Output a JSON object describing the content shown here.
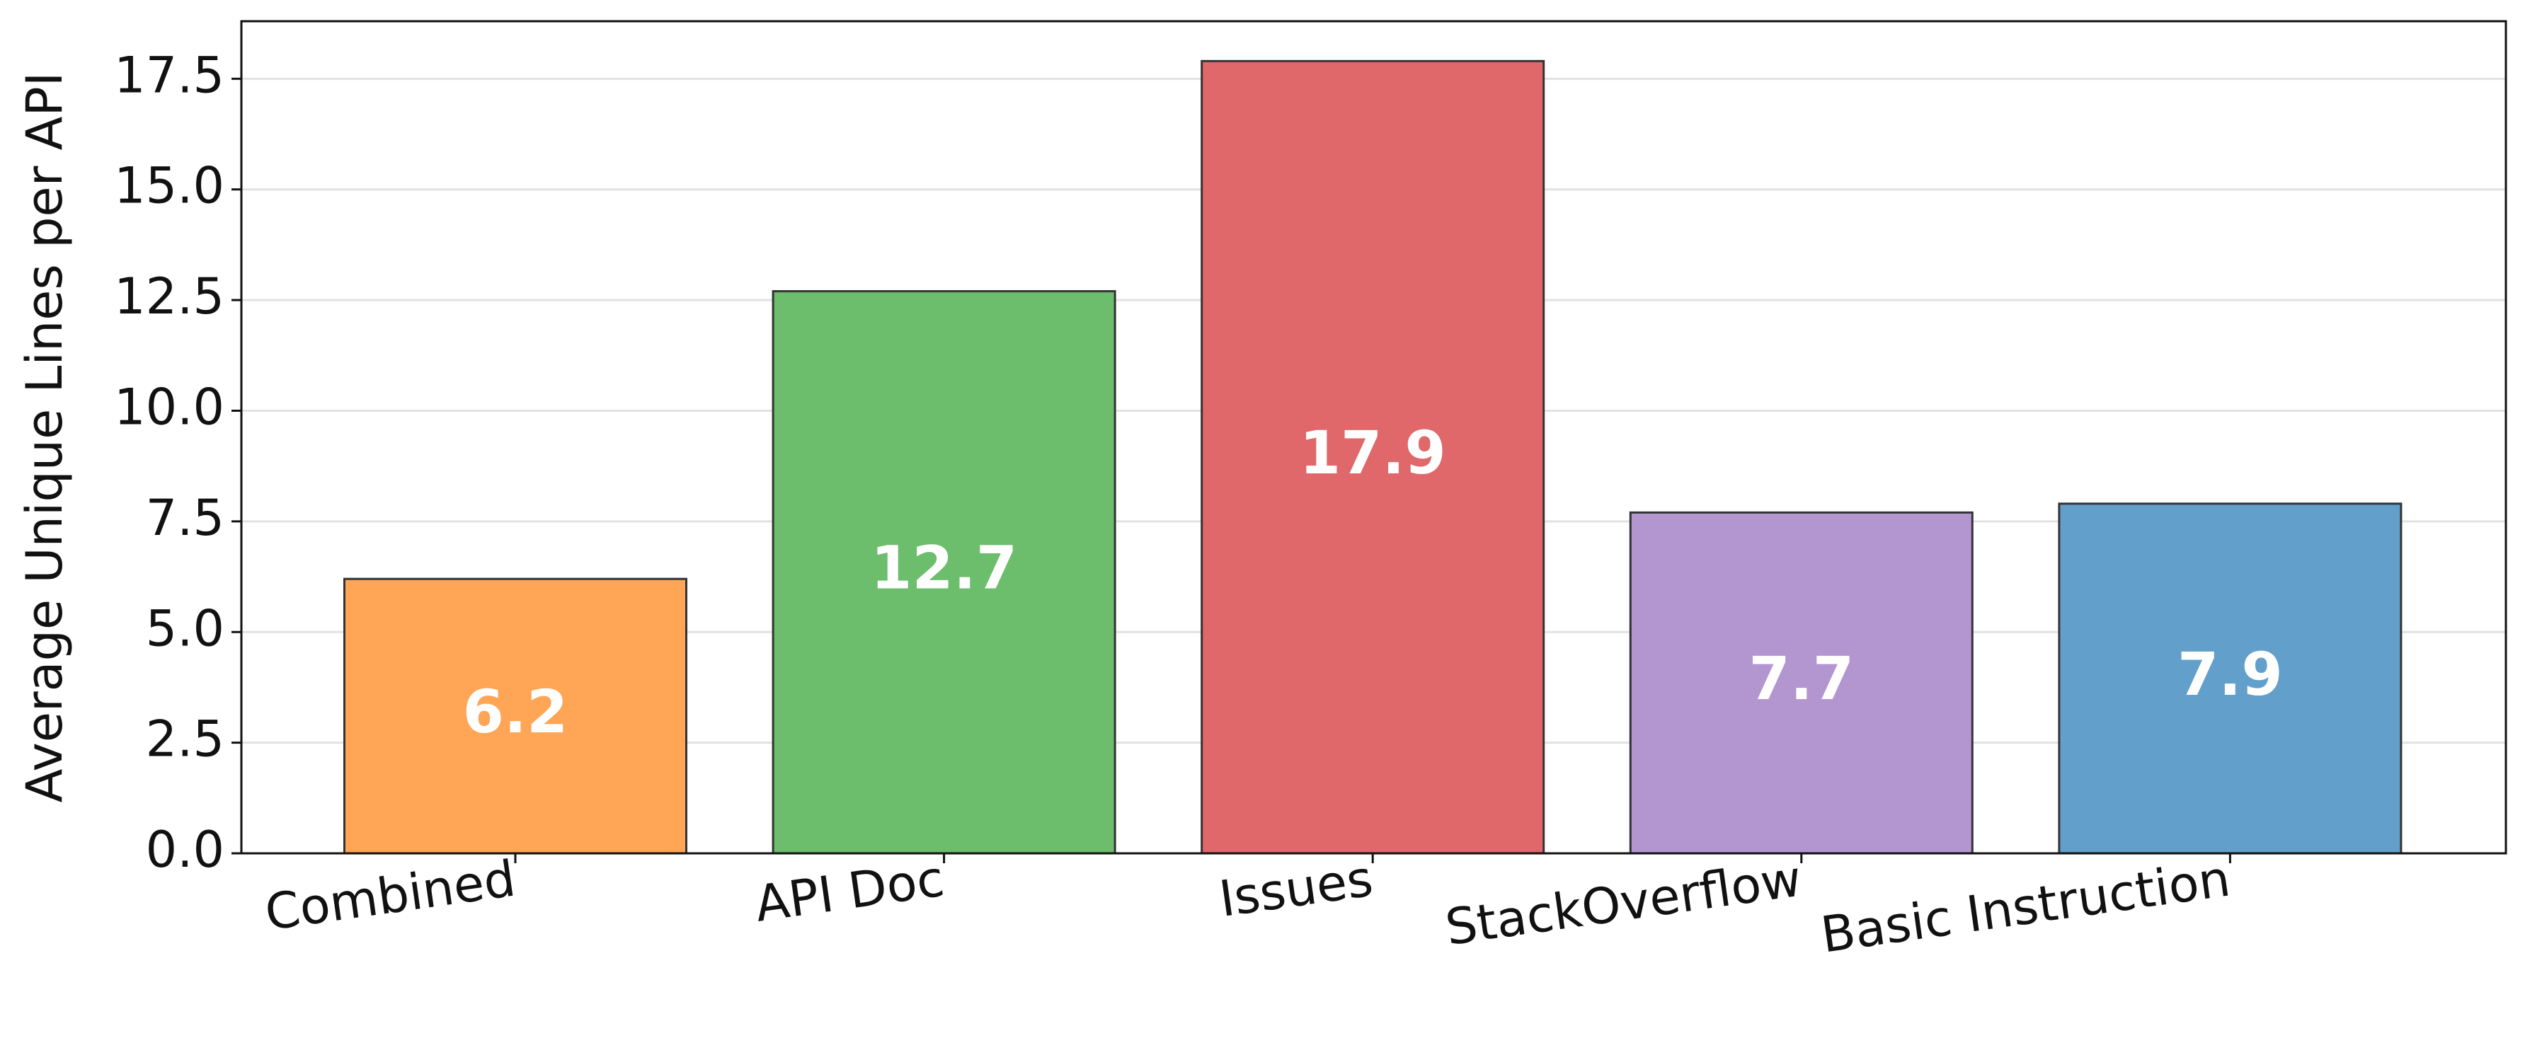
{
  "chart_data": {
    "type": "bar",
    "y_label": "Average Unique Lines per API",
    "categories": [
      "Combined",
      "API Doc",
      "Issues",
      "StackOverflow",
      "Basic Instruction"
    ],
    "values": [
      6.2,
      12.7,
      17.9,
      7.7,
      7.9
    ],
    "colors": [
      "#ffa556",
      "#6cbd6c",
      "#e0676a",
      "#b395cf",
      "#629fca"
    ],
    "ylim": [
      0,
      18.8
    ],
    "yticks": [
      {
        "value": 0,
        "label": "0.0"
      },
      2.5,
      {
        "value": 5,
        "label": "5.0"
      },
      7.5,
      {
        "value": 10,
        "label": "10.0"
      },
      12.5,
      {
        "value": 15,
        "label": "15.0"
      },
      17.5
    ],
    "grid": true
  }
}
